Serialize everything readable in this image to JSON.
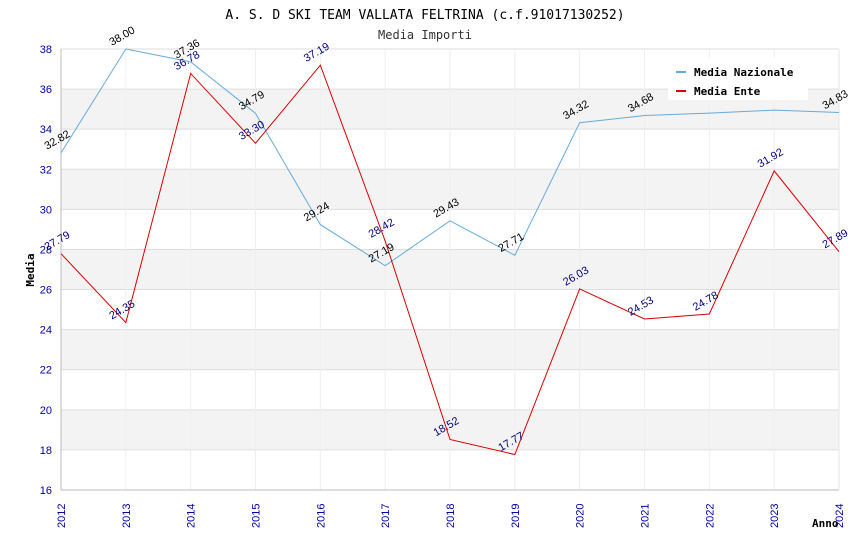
{
  "chart_data": {
    "type": "line",
    "title": "A. S. D SKI TEAM VALLATA FELTRINA (c.f.91017130252)",
    "subtitle": "Media Importi",
    "xlabel": "Anno",
    "ylabel": "Media",
    "x": [
      "2012",
      "2013",
      "2014",
      "2015",
      "2016",
      "2017",
      "2018",
      "2019",
      "2020",
      "2021",
      "2022",
      "2023",
      "2024"
    ],
    "ylim": [
      16,
      38
    ],
    "yticks": [
      "16",
      "18",
      "20",
      "22",
      "24",
      "26",
      "28",
      "30",
      "32",
      "34",
      "36",
      "38"
    ],
    "grid": true,
    "legend_position": "top-right",
    "series": [
      {
        "name": "Media Nazionale",
        "color": "#66aadd",
        "values": [
          32.82,
          38.0,
          37.36,
          34.79,
          29.24,
          27.19,
          29.43,
          27.71,
          34.32,
          34.68,
          34.8,
          34.95,
          34.83
        ],
        "labels": [
          "32.82",
          "38.00",
          "37.36",
          "34.79",
          "29.24",
          "27.19",
          "29.43",
          "27.71",
          "34.32",
          "34.68",
          "",
          "",
          "34.83"
        ]
      },
      {
        "name": "Media Ente",
        "color": "#dd0000",
        "values": [
          27.79,
          24.35,
          36.78,
          33.3,
          37.19,
          28.42,
          18.52,
          17.77,
          26.03,
          24.53,
          24.78,
          31.92,
          27.89
        ],
        "labels": [
          "27.79",
          "24.35",
          "36.78",
          "33.30",
          "37.19",
          "28.42",
          "18.52",
          "17.77",
          "26.03",
          "24.53",
          "24.78",
          "31.92",
          "27.89"
        ]
      }
    ]
  }
}
